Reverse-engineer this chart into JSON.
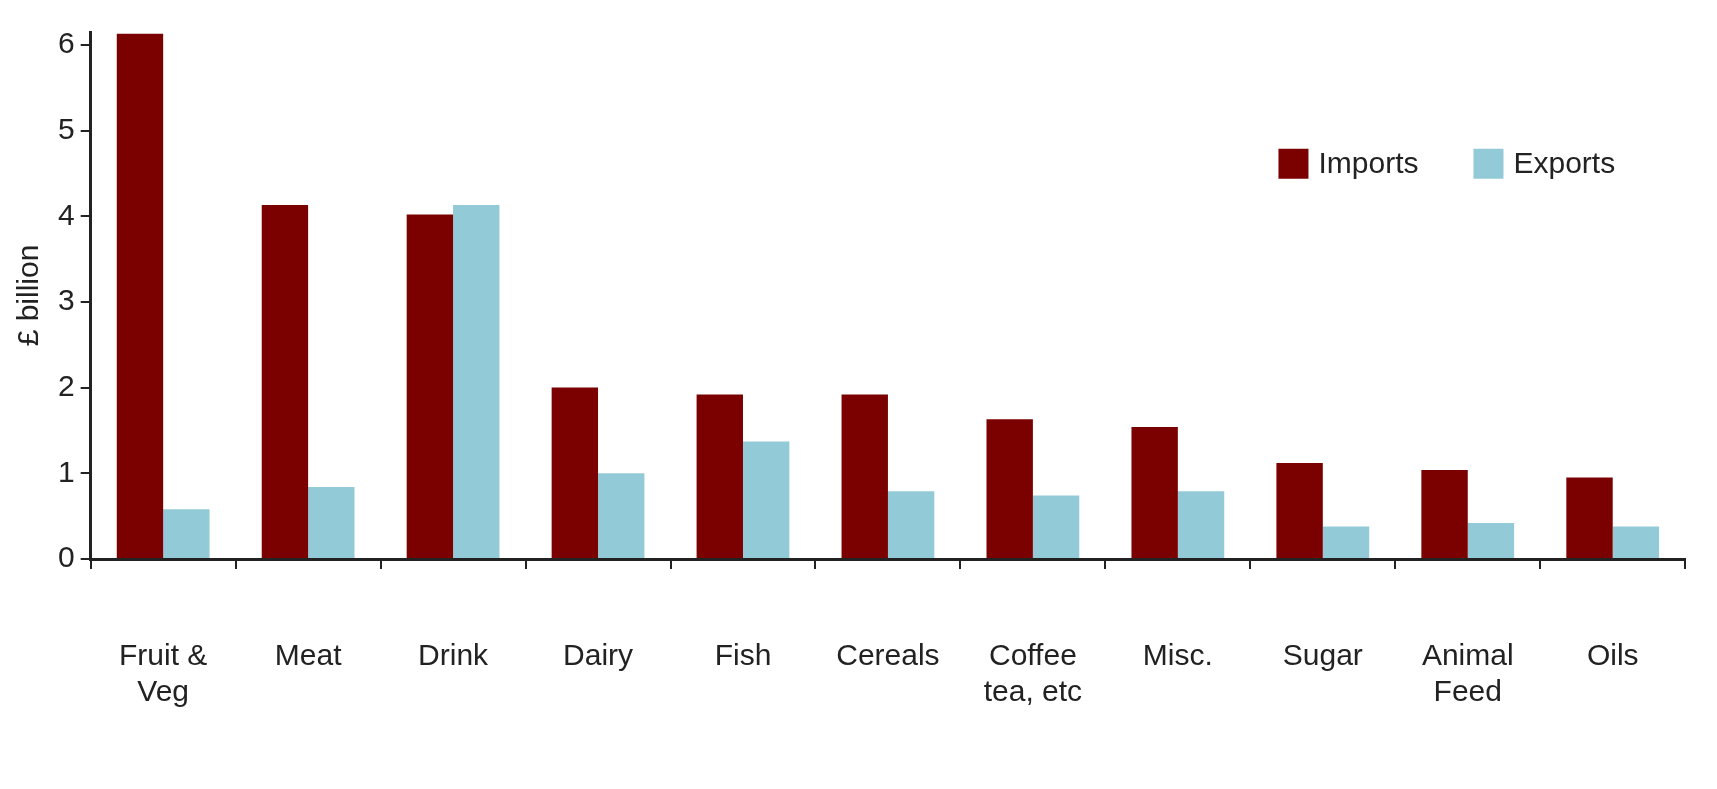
{
  "chart_data": {
    "type": "bar",
    "ylabel": "£ billion",
    "categories": [
      "Fruit &\nVeg",
      "Meat",
      "Drink",
      "Dairy",
      "Fish",
      "Cereals",
      "Coffee\ntea, etc",
      "Misc.",
      "Sugar",
      "Animal\nFeed",
      "Oils"
    ],
    "series": [
      {
        "name": "Imports",
        "color": "#7b0000",
        "values": [
          6.13,
          4.13,
          4.02,
          2.0,
          1.92,
          1.92,
          1.63,
          1.54,
          1.12,
          1.04,
          0.95
        ]
      },
      {
        "name": "Exports",
        "color": "#93cad8",
        "values": [
          0.58,
          0.84,
          4.13,
          1.0,
          1.37,
          0.79,
          0.74,
          0.79,
          0.38,
          0.42,
          0.38
        ]
      }
    ],
    "ylim": [
      0,
      6.15
    ],
    "yticks": [
      0,
      1,
      2,
      3,
      4,
      5,
      6
    ],
    "grid": false,
    "legend": "top right"
  }
}
